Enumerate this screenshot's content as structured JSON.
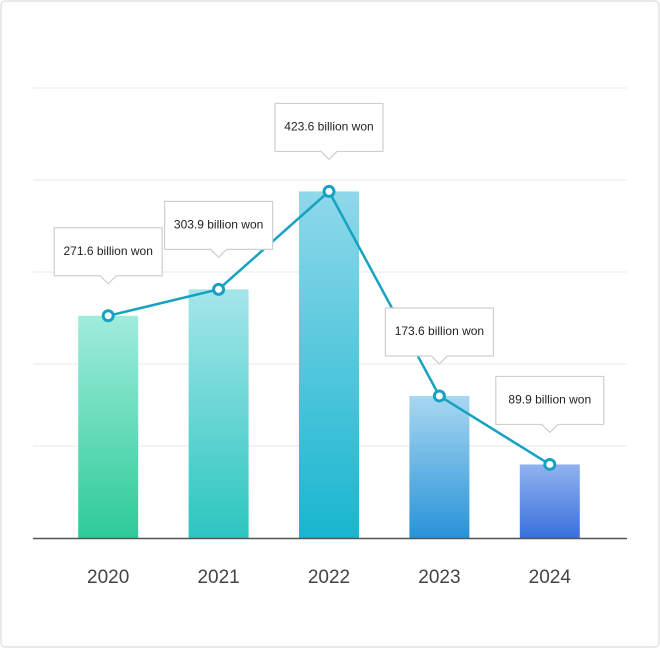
{
  "chart_data": {
    "type": "bar_line",
    "categories": [
      "2020",
      "2021",
      "2022",
      "2023",
      "2024"
    ],
    "values": [
      271.6,
      303.9,
      423.6,
      173.6,
      89.9
    ],
    "value_labels": [
      "271.6 billion won",
      "303.9 billion won",
      "423.6 billion won",
      "173.6 billion won",
      "89.9 billion won"
    ],
    "bar_colors": [
      [
        "#a0ecdc",
        "#2dcb98"
      ],
      [
        "#a4e6ea",
        "#2cc6bf"
      ],
      [
        "#8fd8ea",
        "#18b6cf"
      ],
      [
        "#a8d7f1",
        "#2893d8"
      ],
      [
        "#91b2ef",
        "#3970dd"
      ]
    ],
    "line_color": "#17a2c1",
    "ylim": [
      0,
      550
    ]
  }
}
